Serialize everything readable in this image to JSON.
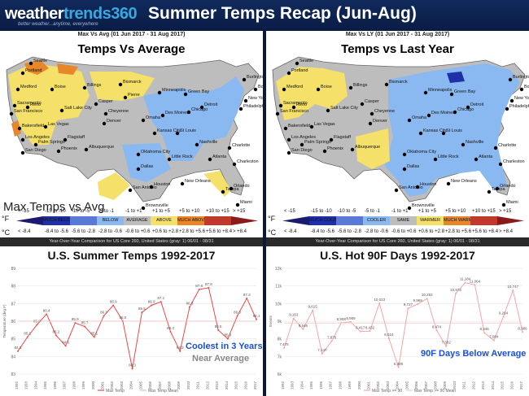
{
  "header": {
    "logo_main": "weather",
    "logo_accent": "trends360",
    "logo_tagline": "better weather...anytime, everywhere",
    "title": "Summer Temps Recap (Jun-Aug)"
  },
  "left_map": {
    "caption": "Max Vs Avg (01 Jun 2017 - 31 Aug 2017)",
    "title": "Temps Vs Average",
    "bottom_label": "Max Temps vs Avg",
    "unit_f": "°F",
    "unit_c": "°C",
    "f_ranges": [
      "< -15",
      "-15 to -10",
      "-10 to -5",
      "-5 to -1",
      "-1 to +1",
      "+1 to +5",
      "+5 to +10",
      "+10 to +15",
      "> +15"
    ],
    "categories": [
      "MUCH BELOW",
      "BELOW",
      "AVERAGE",
      "ABOVE",
      "MUCH ABOVE"
    ],
    "c_ranges": [
      "< -8.4",
      "-8.4 to -5.6",
      "-5.6 to -2.8",
      "-2.8 to -0.6",
      "-0.6 to +0.6",
      "+0.6 to +2.8",
      "+2.8 to +5.6",
      "+5.6 to +8.4",
      "> +8.4"
    ]
  },
  "right_map": {
    "caption": "Max Vs LY (01 Jun 2017 - 31 Aug 2017)",
    "title": "Temps vs Last Year",
    "unit_f": "°F",
    "unit_c": "°C",
    "f_ranges": [
      "< -15",
      "-15 to -10",
      "-10 to -5",
      "-5 to -1",
      "-1 to +1",
      "+1 to +5",
      "+5 to +10",
      "+10 to +15",
      "> +15"
    ],
    "categories": [
      "MUCH COLDER",
      "COOLER",
      "SAME",
      "WARMER",
      "MUCH WARMER"
    ],
    "c_ranges": [
      "< -8.4",
      "-8.4 to -5.6",
      "-5.6 to -2.8",
      "-2.8 to -0.6",
      "-0.6 to +0.6",
      "+0.6 to +2.8",
      "+2.8 to +5.6",
      "+5.6 to +8.4",
      "> +8.4"
    ]
  },
  "colors": {
    "much_below": "#1f2fa8",
    "below": "#8ab8f0",
    "average": "#bdbdbd",
    "above": "#f5e06a",
    "much_above": "#e8862a",
    "extreme_above": "#8b1a1a",
    "line": "#e84a4a"
  },
  "cities_left": [
    "Seattle",
    "Portland",
    "Medford",
    "Boise",
    "Sacramento",
    "Reno",
    "San Francisco",
    "Salt Lake City",
    "Las Vegas",
    "Bakersfield",
    "Los Angeles",
    "Palm Springs",
    "San Diego",
    "Phoenix",
    "Flagstaff",
    "Albuquerque",
    "Billings",
    "Bismarck",
    "Casper",
    "Cheyenne",
    "Denver",
    "Omaha",
    "Pierre",
    "Minneapolis",
    "Green Bay",
    "Detroit",
    "Chicago",
    "Des Moines",
    "Kansas City",
    "St Louis",
    "Oklahoma City",
    "Dallas",
    "San Antonio",
    "Houston",
    "New Orleans",
    "Little Rock",
    "Brownsville",
    "Atlanta",
    "Charlotte",
    "Nashville",
    "Tampa",
    "Orlando",
    "Miami",
    "Boston",
    "New York",
    "Philadelphia",
    "Charleston",
    "Burlington"
  ],
  "cities_right": [
    "Seattle",
    "Portland",
    "Medford",
    "Boise",
    "Sacramento",
    "Reno",
    "San Francisco",
    "Salt Lake City",
    "Las Vegas",
    "Bakersfield",
    "Los Angeles",
    "Palm Springs",
    "San Diego",
    "Phoenix",
    "Flagstaff",
    "Albuquerque",
    "Billings",
    "Bismarck",
    "Casper",
    "Cheyenne",
    "Denver",
    "Omaha",
    "Minneapolis",
    "Green Bay",
    "Detroit",
    "Chicago",
    "Des Moines",
    "Kansas City",
    "St Louis",
    "Oklahoma City",
    "Dallas",
    "San Antonio",
    "Houston",
    "New Orleans",
    "Little Rock",
    "Brownsville",
    "Atlanta",
    "Charlotte",
    "Nashville",
    "Tampa",
    "Orlando",
    "Miami",
    "Boston",
    "New York",
    "Philadelphia",
    "Charleston",
    "Burlington"
  ],
  "chart_data": [
    {
      "type": "line",
      "subheader": "Year-Over-Year Comparison for US Core 260, United States (gray: 1) 06/01 - 08/31",
      "title": "U.S. Summer Temps 1992-2017",
      "ylabel": "Temperature (deg F)",
      "ylim": [
        83,
        89
      ],
      "yticks": [
        83,
        84,
        85,
        86,
        87,
        88,
        89
      ],
      "x": [
        1992,
        1993,
        1994,
        1995,
        1996,
        1997,
        1998,
        1999,
        2000,
        2001,
        2002,
        2003,
        2004,
        2005,
        2006,
        2007,
        2008,
        2009,
        2010,
        2011,
        2012,
        2013,
        2014,
        2015,
        2016,
        2017
      ],
      "series": [
        {
          "name": "Max Temp",
          "values": [
            84.3,
            85.1,
            85.8,
            86.4,
            85.2,
            84.6,
            85.9,
            85.7,
            85.1,
            86.3,
            86.9,
            86.0,
            83.3,
            86.5,
            86.9,
            87.1,
            85.4,
            84.3,
            86.8,
            87.8,
            87.9,
            85.5,
            85.0,
            86.3,
            87.3,
            86.1
          ],
          "color": "#e84a4a"
        },
        {
          "name": "Max Temp Mean",
          "values": [
            86.0,
            86.0,
            86.0,
            86.0,
            86.0,
            86.0,
            86.0,
            86.0,
            86.0,
            86.0,
            86.0,
            86.0,
            86.0,
            86.0,
            86.0,
            86.0,
            86.0,
            86.0,
            86.0,
            86.0,
            86.0,
            86.0,
            86.0,
            86.0,
            86.0,
            86.0
          ],
          "color": "#f7b8b8"
        }
      ],
      "point_labels": [
        "84.3",
        "85.1",
        "85.8",
        "86.4",
        "85.2",
        "84.6",
        "85.9",
        "85.7",
        "85.1",
        "86.3",
        "86.9",
        "86.0",
        "83.3",
        "86.5",
        "86.9",
        "87.1",
        "85.4",
        "84.3",
        "86.8",
        "87.8",
        "87.9",
        "85.5",
        "85.0",
        "86.3",
        "87.3",
        "86.1"
      ],
      "annotation_blue": "Coolest in 3 Years",
      "annotation_gray": "Near Average"
    },
    {
      "type": "line",
      "subheader": "Year-Over-Year Comparison for US Core 260, United States (gray: 1) 06/01 - 08/31",
      "title": "U.S. Hot 90F Days 1992-2017",
      "ylabel": "Events",
      "ylim": [
        6000,
        12000
      ],
      "yticks": [
        6000,
        7000,
        8000,
        9000,
        10000,
        11000,
        12000
      ],
      "x": [
        1992,
        1993,
        1994,
        1995,
        1996,
        1997,
        1998,
        1999,
        2000,
        2001,
        2002,
        2003,
        2004,
        2005,
        2006,
        2007,
        2008,
        2009,
        2010,
        2011,
        2012,
        2013,
        2014,
        2015,
        2016,
        2017
      ],
      "series": [
        {
          "name": "Max Temp >= 90",
          "values": [
            7475,
            9153,
            8546,
            9615,
            7147,
            7876,
            8908,
            8959,
            8417,
            8432,
            10023,
            8024,
            6380,
            9727,
            9969,
            10282,
            8474,
            7582,
            10573,
            11184,
            11064,
            8345,
            7904,
            9264,
            10747,
            8386
          ],
          "color": "#f4a6a6"
        },
        {
          "name": "Max Temp >= 90 Mean",
          "values": [
            8900,
            8900,
            8900,
            8900,
            8900,
            8900,
            8900,
            8900,
            8900,
            8900,
            8900,
            8900,
            8900,
            8900,
            8900,
            8900,
            8900,
            8900,
            8900,
            8900,
            8900,
            8900,
            8900,
            8900,
            8900,
            8900
          ],
          "color": "#f7c8c8"
        }
      ],
      "point_labels": [
        "7,475",
        "9,153",
        "8,546",
        "9,615",
        "7,147",
        "7,876",
        "8,908",
        "8,959",
        "8,417",
        "8,432",
        "10,023",
        "8,024",
        "6,380",
        "9,727",
        "9,969",
        "10,282",
        "8,474",
        "7,582",
        "10,573",
        "11,184",
        "11,064",
        "8,345",
        "7,904",
        "9,264",
        "10,747",
        "8,386"
      ],
      "annotation_blue": "90F Days Below Average"
    }
  ]
}
